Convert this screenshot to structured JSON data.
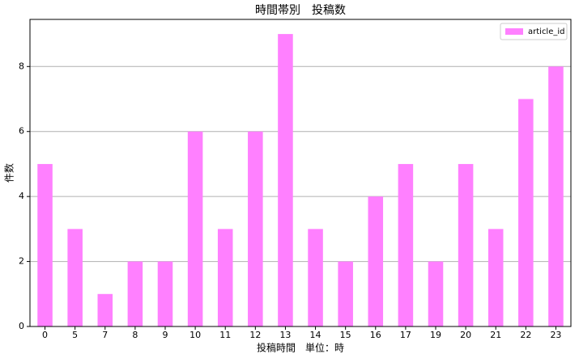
{
  "chart_data": {
    "type": "bar",
    "title": "時間帯別　投稿数",
    "x_label": "投稿時間　単位：時",
    "y_label": "件数",
    "categories": [
      "0",
      "5",
      "7",
      "8",
      "9",
      "10",
      "11",
      "12",
      "13",
      "14",
      "15",
      "16",
      "17",
      "19",
      "20",
      "21",
      "22",
      "23"
    ],
    "series": [
      {
        "name": "article_id",
        "color": "#ff80ff",
        "values": [
          5,
          3,
          1,
          2,
          2,
          6,
          3,
          6,
          9,
          3,
          2,
          4,
          5,
          2,
          5,
          3,
          7,
          8
        ]
      }
    ],
    "ylim": [
      0,
      9.45
    ],
    "yticks": [
      0,
      2,
      4,
      6,
      8
    ],
    "grid": true,
    "legend": "upper right"
  }
}
